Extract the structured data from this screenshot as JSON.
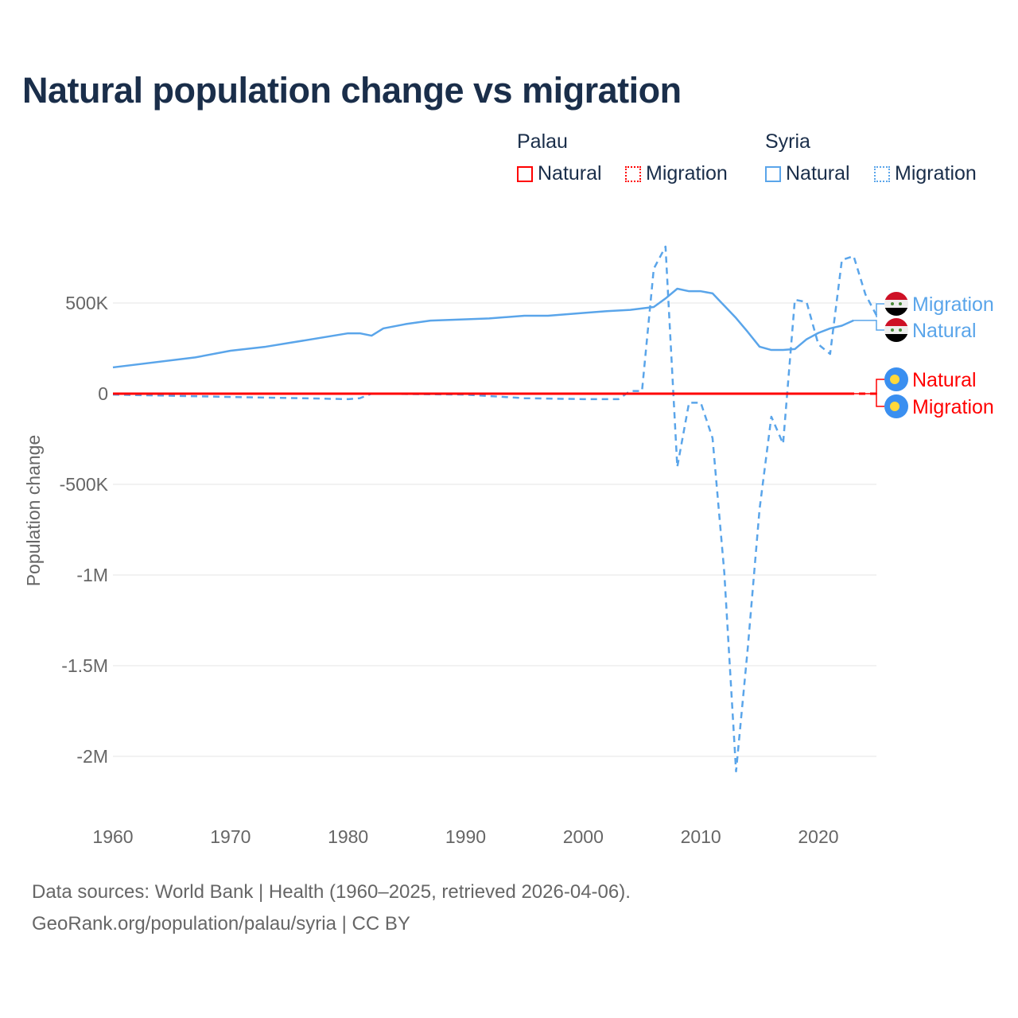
{
  "title": "Natural population change vs migration",
  "legend": {
    "groups": [
      {
        "name": "Palau",
        "color": "#ff0000",
        "items": [
          "Natural",
          "Migration"
        ]
      },
      {
        "name": "Syria",
        "color": "#5aa5ea",
        "items": [
          "Natural",
          "Migration"
        ]
      }
    ]
  },
  "footer": {
    "line1": "Data sources: World Bank | Health (1960–2025, retrieved 2026-04-06).",
    "line2": "GeoRank.org/population/palau/syria | CC BY"
  },
  "chart_data": {
    "type": "line",
    "title": "Natural population change vs migration",
    "xlabel": "",
    "ylabel": "Population change",
    "xlim": [
      1960,
      2025
    ],
    "ylim": [
      -2200000,
      850000
    ],
    "xticks": [
      1960,
      1970,
      1980,
      1990,
      2000,
      2010,
      2020
    ],
    "xtick_labels": [
      "1960",
      "1970",
      "1980",
      "1990",
      "2000",
      "2010",
      "2020"
    ],
    "yticks": [
      500000,
      0,
      -500000,
      -1000000,
      -1500000,
      -2000000
    ],
    "ytick_labels": [
      "500K",
      "0",
      "-500K",
      "-1M",
      "-1.5M",
      "-2M"
    ],
    "grid": true,
    "series": [
      {
        "name": "Syria Natural",
        "label": "Natural",
        "country": "Syria",
        "color": "#5aa5ea",
        "dash": false,
        "x": [
          1960,
          1967,
          1970,
          1973,
          1975,
          1980,
          1981,
          1982,
          1983,
          1985,
          1987,
          1990,
          1992,
          1995,
          1997,
          2000,
          2002,
          2004,
          2006,
          2007,
          2008,
          2009,
          2010,
          2011,
          2012,
          2013,
          2014,
          2015,
          2016,
          2017,
          2018,
          2019,
          2020,
          2021,
          2022,
          2023
        ],
        "y": [
          145000,
          200000,
          237000,
          259000,
          280000,
          333000,
          333000,
          320000,
          360000,
          385000,
          403000,
          410000,
          415000,
          430000,
          430000,
          445000,
          455000,
          462000,
          478000,
          525000,
          579000,
          565000,
          565000,
          553000,
          485000,
          417000,
          340000,
          259000,
          241000,
          241000,
          246000,
          300000,
          335000,
          360000,
          375000,
          404000
        ]
      },
      {
        "name": "Syria Migration",
        "label": "Migration",
        "country": "Syria",
        "color": "#5aa5ea",
        "dash": true,
        "x": [
          1960,
          1970,
          1980,
          1981,
          1982,
          1990,
          1995,
          2000,
          2003,
          2004,
          2005,
          2006,
          2007,
          2008,
          2009,
          2010,
          2011,
          2012,
          2013,
          2014,
          2015,
          2016,
          2017,
          2018,
          2019,
          2020,
          2021,
          2022,
          2023,
          2024,
          2025
        ],
        "y": [
          -5000,
          -18000,
          -30000,
          -25000,
          0,
          -5000,
          -25000,
          -30000,
          -30000,
          15000,
          15000,
          689000,
          811000,
          -404000,
          -50000,
          -50000,
          -245000,
          -987000,
          -2083000,
          -1400000,
          -636000,
          -127000,
          -276000,
          518000,
          505000,
          272000,
          219000,
          737000,
          759000,
          548000,
          425000
        ]
      },
      {
        "name": "Palau Natural",
        "label": "Natural",
        "country": "Palau",
        "color": "#ff0000",
        "dash": false,
        "x": [
          1960,
          2023
        ],
        "y": [
          200,
          200
        ]
      },
      {
        "name": "Palau Migration",
        "label": "Migration",
        "country": "Palau",
        "color": "#ff0000",
        "dash": true,
        "x": [
          1960,
          2025
        ],
        "y": [
          -100,
          -100
        ]
      }
    ]
  }
}
